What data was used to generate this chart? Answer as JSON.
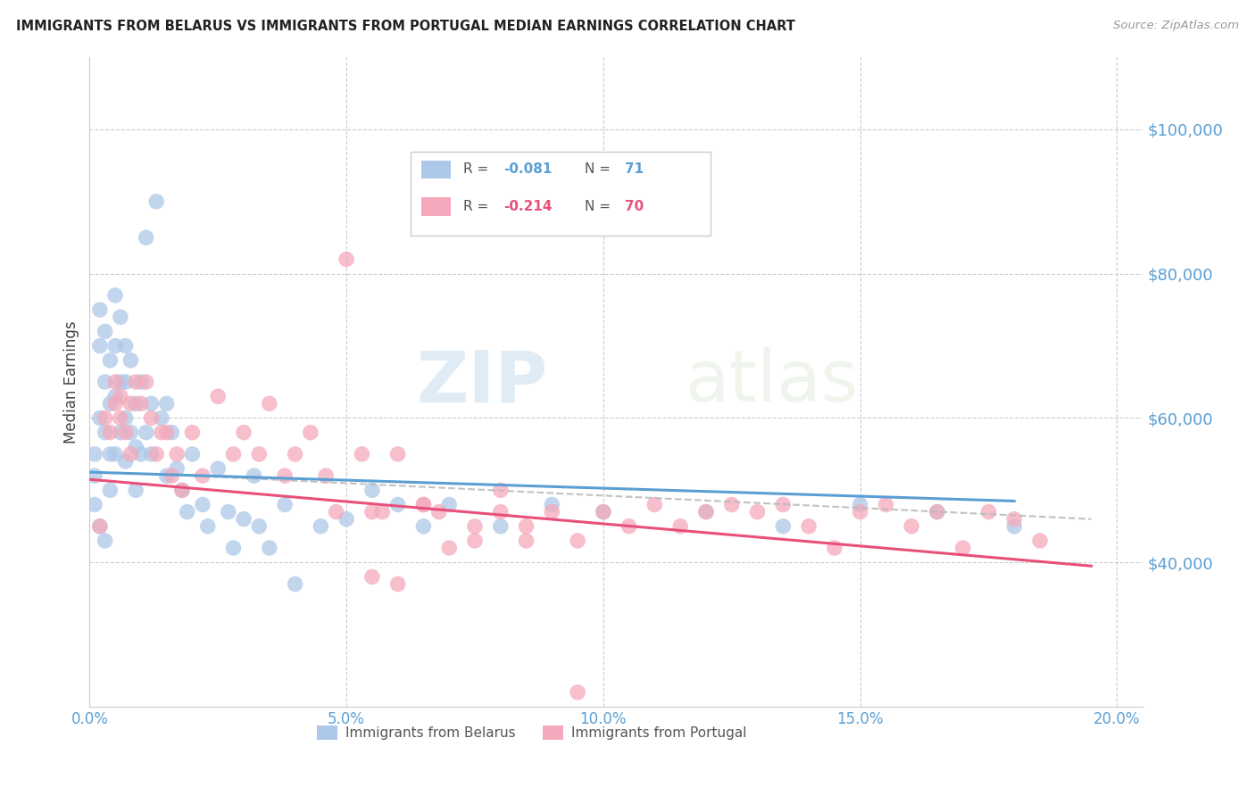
{
  "title": "IMMIGRANTS FROM BELARUS VS IMMIGRANTS FROM PORTUGAL MEDIAN EARNINGS CORRELATION CHART",
  "source": "Source: ZipAtlas.com",
  "ylabel": "Median Earnings",
  "xlim": [
    0.0,
    0.205
  ],
  "ylim": [
    20000,
    110000
  ],
  "yticks": [
    40000,
    60000,
    80000,
    100000
  ],
  "ytick_labels": [
    "$40,000",
    "$60,000",
    "$80,000",
    "$100,000"
  ],
  "xticks": [
    0.0,
    0.05,
    0.1,
    0.15,
    0.2
  ],
  "xtick_labels": [
    "0.0%",
    "5.0%",
    "10.0%",
    "15.0%",
    "20.0%"
  ],
  "r_belarus": -0.081,
  "n_belarus": 71,
  "r_portugal": -0.214,
  "n_portugal": 70,
  "color_belarus": "#adc8e8",
  "color_portugal": "#f5a8bb",
  "line_color_belarus": "#5a9fd4",
  "line_color_portugal": "#e8507a",
  "watermark_zip": "ZIP",
  "watermark_atlas": "atlas",
  "background_color": "#ffffff",
  "grid_color": "#cccccc",
  "belarus_x": [
    0.001,
    0.001,
    0.001,
    0.002,
    0.002,
    0.002,
    0.002,
    0.003,
    0.003,
    0.003,
    0.003,
    0.004,
    0.004,
    0.004,
    0.004,
    0.005,
    0.005,
    0.005,
    0.005,
    0.006,
    0.006,
    0.006,
    0.007,
    0.007,
    0.007,
    0.007,
    0.008,
    0.008,
    0.009,
    0.009,
    0.009,
    0.01,
    0.01,
    0.011,
    0.011,
    0.012,
    0.012,
    0.013,
    0.014,
    0.015,
    0.015,
    0.016,
    0.017,
    0.018,
    0.019,
    0.02,
    0.022,
    0.023,
    0.025,
    0.027,
    0.028,
    0.03,
    0.032,
    0.033,
    0.035,
    0.038,
    0.04,
    0.045,
    0.05,
    0.055,
    0.06,
    0.065,
    0.07,
    0.08,
    0.09,
    0.1,
    0.12,
    0.135,
    0.15,
    0.165,
    0.18
  ],
  "belarus_y": [
    55000,
    52000,
    48000,
    75000,
    70000,
    60000,
    45000,
    72000,
    65000,
    58000,
    43000,
    68000,
    62000,
    55000,
    50000,
    77000,
    70000,
    63000,
    55000,
    74000,
    65000,
    58000,
    70000,
    65000,
    60000,
    54000,
    68000,
    58000,
    62000,
    56000,
    50000,
    65000,
    55000,
    85000,
    58000,
    62000,
    55000,
    90000,
    60000,
    62000,
    52000,
    58000,
    53000,
    50000,
    47000,
    55000,
    48000,
    45000,
    53000,
    47000,
    42000,
    46000,
    52000,
    45000,
    42000,
    48000,
    37000,
    45000,
    46000,
    50000,
    48000,
    45000,
    48000,
    45000,
    48000,
    47000,
    47000,
    45000,
    48000,
    47000,
    45000
  ],
  "portugal_x": [
    0.002,
    0.003,
    0.004,
    0.005,
    0.005,
    0.006,
    0.006,
    0.007,
    0.008,
    0.008,
    0.009,
    0.01,
    0.011,
    0.012,
    0.013,
    0.014,
    0.015,
    0.016,
    0.017,
    0.018,
    0.02,
    0.022,
    0.025,
    0.028,
    0.03,
    0.033,
    0.035,
    0.038,
    0.04,
    0.043,
    0.046,
    0.048,
    0.05,
    0.053,
    0.055,
    0.057,
    0.06,
    0.065,
    0.068,
    0.07,
    0.075,
    0.08,
    0.085,
    0.09,
    0.095,
    0.1,
    0.105,
    0.11,
    0.115,
    0.12,
    0.125,
    0.13,
    0.135,
    0.14,
    0.145,
    0.15,
    0.155,
    0.16,
    0.165,
    0.17,
    0.175,
    0.18,
    0.185,
    0.055,
    0.06,
    0.065,
    0.075,
    0.08,
    0.085,
    0.095
  ],
  "portugal_y": [
    45000,
    60000,
    58000,
    65000,
    62000,
    63000,
    60000,
    58000,
    62000,
    55000,
    65000,
    62000,
    65000,
    60000,
    55000,
    58000,
    58000,
    52000,
    55000,
    50000,
    58000,
    52000,
    63000,
    55000,
    58000,
    55000,
    62000,
    52000,
    55000,
    58000,
    52000,
    47000,
    82000,
    55000,
    47000,
    47000,
    55000,
    48000,
    47000,
    42000,
    43000,
    50000,
    45000,
    47000,
    43000,
    47000,
    45000,
    48000,
    45000,
    47000,
    48000,
    47000,
    48000,
    45000,
    42000,
    47000,
    48000,
    45000,
    47000,
    42000,
    47000,
    46000,
    43000,
    38000,
    37000,
    48000,
    45000,
    47000,
    43000,
    22000
  ]
}
